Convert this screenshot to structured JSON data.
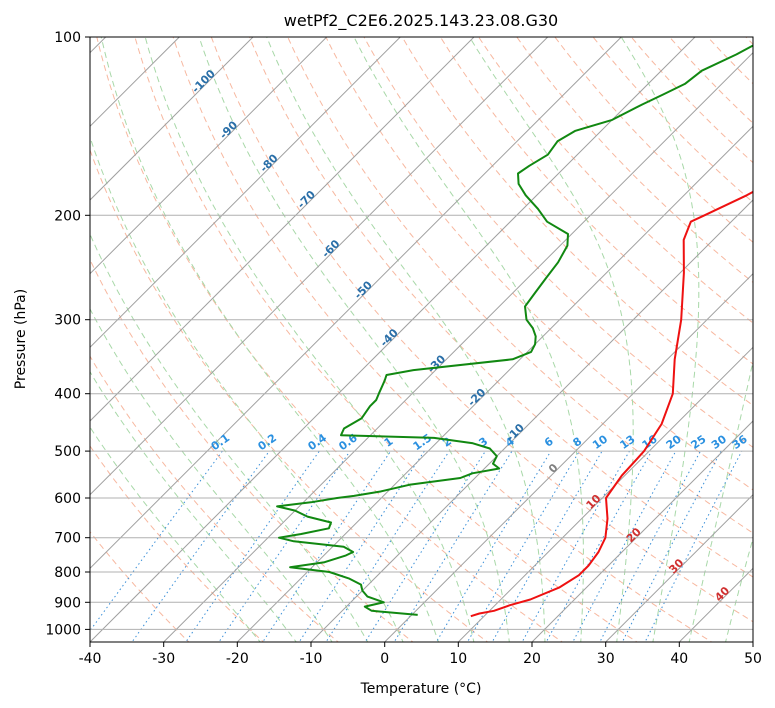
{
  "chart_data": {
    "type": "line",
    "subtype": "skew-T log-P diagram",
    "title": "wetPf2_C2E6.2025.143.23.08.G30",
    "xlabel": "Temperature (°C)",
    "ylabel": "Pressure (hPa)",
    "xlim": [
      -40,
      50
    ],
    "ylim": [
      1050,
      100
    ],
    "y_scale": "log",
    "grid": true,
    "x_ticks": [
      "-40",
      "-30",
      "-20",
      "-10",
      "0",
      "10",
      "20",
      "30",
      "40",
      "50"
    ],
    "x_tick_values": [
      -40,
      -30,
      -20,
      -10,
      0,
      10,
      20,
      30,
      40,
      50
    ],
    "y_ticks": [
      "100",
      "200",
      "300",
      "400",
      "500",
      "600",
      "700",
      "800",
      "900",
      "1000"
    ],
    "y_tick_values": [
      100,
      200,
      300,
      400,
      500,
      600,
      700,
      800,
      900,
      1000
    ],
    "colors": {
      "temperature": "#ee1111",
      "dewpoint": "#118811",
      "isotherm": "#a0a0a0",
      "dry_adiabat": "#f7b8a0",
      "moist_adiabat": "#a8d8a8",
      "mixing_ratio": "#3a8fd8",
      "isotherm_label_cold": "#2a6fa8",
      "isotherm_label_warm": "#d03030",
      "mixing_label": "#2a90e0",
      "zero_label": "#808080"
    },
    "isotherm_labels": [
      {
        "t": -100,
        "p": 120,
        "text": "-100"
      },
      {
        "t": -90,
        "p": 145,
        "text": "-90"
      },
      {
        "t": -80,
        "p": 165,
        "text": "-80"
      },
      {
        "t": -70,
        "p": 190,
        "text": "-70"
      },
      {
        "t": -60,
        "p": 230,
        "text": "-60"
      },
      {
        "t": -50,
        "p": 270,
        "text": "-50"
      },
      {
        "t": -40,
        "p": 325,
        "text": "-40"
      },
      {
        "t": -30,
        "p": 360,
        "text": "-30"
      },
      {
        "t": -20,
        "p": 410,
        "text": "-20"
      },
      {
        "t": -10,
        "p": 470,
        "text": "-10"
      },
      {
        "t": 0,
        "p": 540,
        "text": "0"
      },
      {
        "t": 10,
        "p": 615,
        "text": "10"
      },
      {
        "t": 20,
        "p": 700,
        "text": "20"
      },
      {
        "t": 30,
        "p": 790,
        "text": "30"
      },
      {
        "t": 40,
        "p": 880,
        "text": "40"
      }
    ],
    "mixing_ratio_labels": [
      {
        "w": 0.1,
        "text": "0.1"
      },
      {
        "w": 0.2,
        "text": "0.2"
      },
      {
        "w": 0.4,
        "text": "0.4"
      },
      {
        "w": 0.6,
        "text": "0.6"
      },
      {
        "w": 1,
        "text": "1"
      },
      {
        "w": 1.5,
        "text": "1.5"
      },
      {
        "w": 2,
        "text": "2"
      },
      {
        "w": 3,
        "text": "3"
      },
      {
        "w": 4,
        "text": "4"
      },
      {
        "w": 6,
        "text": "6"
      },
      {
        "w": 8,
        "text": "8"
      },
      {
        "w": 10,
        "text": "10"
      },
      {
        "w": 13,
        "text": "13"
      },
      {
        "w": 16,
        "text": "16"
      },
      {
        "w": 20,
        "text": "20"
      },
      {
        "w": 25,
        "text": "25"
      },
      {
        "w": 30,
        "text": "30"
      },
      {
        "w": 36,
        "text": "36"
      }
    ],
    "series": [
      {
        "key": "temperature",
        "points": [
          [
            950,
            8.2
          ],
          [
            940,
            9.0
          ],
          [
            930,
            10.6
          ],
          [
            910,
            12.0
          ],
          [
            890,
            14.0
          ],
          [
            850,
            16.3
          ],
          [
            810,
            17.3
          ],
          [
            780,
            17.3
          ],
          [
            740,
            16.8
          ],
          [
            700,
            15.8
          ],
          [
            650,
            13.5
          ],
          [
            600,
            10.5
          ],
          [
            550,
            9.6
          ],
          [
            500,
            9.3
          ],
          [
            450,
            8.0
          ],
          [
            400,
            5.4
          ],
          [
            350,
            1.0
          ],
          [
            300,
            -3.5
          ],
          [
            250,
            -9.5
          ],
          [
            220,
            -14.0
          ],
          [
            205,
            -15.5
          ],
          [
            200,
            -14.5
          ],
          [
            185,
            -11.5
          ],
          [
            170,
            -9.0
          ],
          [
            160,
            -9.5
          ],
          [
            150,
            -8.5
          ],
          [
            140,
            -8.5
          ],
          [
            130,
            -8.5
          ],
          [
            122,
            -7.0
          ],
          [
            115,
            -3.5
          ],
          [
            110,
            -1.5
          ],
          [
            105,
            0.5
          ],
          [
            100,
            2.5
          ]
        ]
      },
      {
        "key": "dewpoint",
        "points": [
          [
            945,
            0.8
          ],
          [
            930,
            -6.0
          ],
          [
            915,
            -7.5
          ],
          [
            900,
            -5.5
          ],
          [
            880,
            -8.5
          ],
          [
            860,
            -10.0
          ],
          [
            840,
            -11.0
          ],
          [
            820,
            -13.5
          ],
          [
            800,
            -17.0
          ],
          [
            785,
            -23.0
          ],
          [
            770,
            -19.0
          ],
          [
            750,
            -17.0
          ],
          [
            740,
            -16.5
          ],
          [
            725,
            -18.5
          ],
          [
            710,
            -26.0
          ],
          [
            700,
            -28.5
          ],
          [
            690,
            -26.0
          ],
          [
            675,
            -23.0
          ],
          [
            660,
            -23.5
          ],
          [
            645,
            -27.5
          ],
          [
            630,
            -30.0
          ],
          [
            620,
            -33.0
          ],
          [
            610,
            -29.0
          ],
          [
            600,
            -26.0
          ],
          [
            595,
            -24.0
          ],
          [
            585,
            -21.0
          ],
          [
            570,
            -18.0
          ],
          [
            555,
            -12.0
          ],
          [
            545,
            -11.0
          ],
          [
            535,
            -8.0
          ],
          [
            525,
            -9.5
          ],
          [
            510,
            -10.0
          ],
          [
            495,
            -12.0
          ],
          [
            485,
            -15.0
          ],
          [
            475,
            -21.0
          ],
          [
            470,
            -34.0
          ],
          [
            458,
            -34.5
          ],
          [
            440,
            -33.5
          ],
          [
            420,
            -34.0
          ],
          [
            410,
            -34.0
          ],
          [
            400,
            -34.5
          ],
          [
            380,
            -35.5
          ],
          [
            372,
            -36.0
          ],
          [
            365,
            -33.0
          ],
          [
            350,
            -21.0
          ],
          [
            340,
            -19.5
          ],
          [
            330,
            -20.0
          ],
          [
            320,
            -21.0
          ],
          [
            310,
            -22.5
          ],
          [
            300,
            -24.5
          ],
          [
            285,
            -26.5
          ],
          [
            270,
            -27.0
          ],
          [
            255,
            -27.5
          ],
          [
            240,
            -28.0
          ],
          [
            225,
            -29.0
          ],
          [
            215,
            -30.5
          ],
          [
            205,
            -35.0
          ],
          [
            195,
            -38.0
          ],
          [
            185,
            -41.5
          ],
          [
            177,
            -44.0
          ],
          [
            170,
            -45.5
          ],
          [
            165,
            -45.0
          ],
          [
            158,
            -44.0
          ],
          [
            150,
            -44.5
          ],
          [
            144,
            -43.5
          ],
          [
            138,
            -40.0
          ],
          [
            130,
            -38.0
          ],
          [
            125,
            -36.5
          ],
          [
            120,
            -35.0
          ],
          [
            114,
            -34.5
          ],
          [
            107,
            -32.0
          ],
          [
            100,
            -30.0
          ]
        ]
      }
    ]
  }
}
